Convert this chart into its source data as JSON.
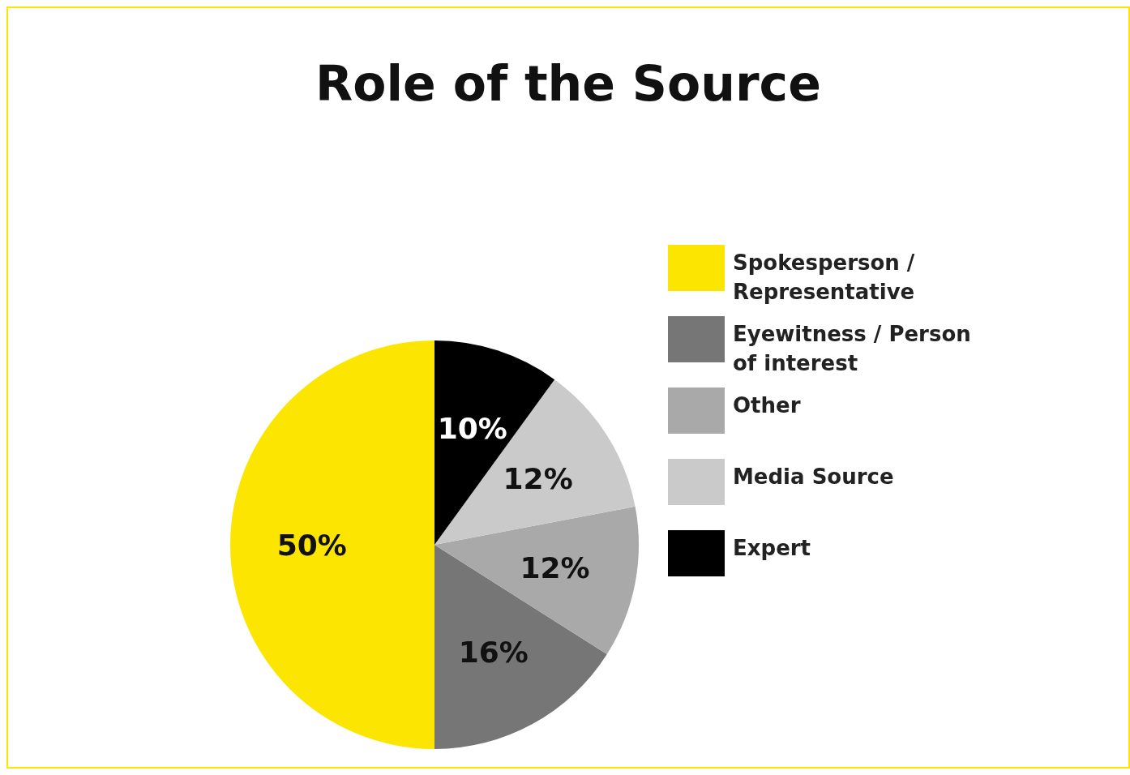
{
  "chart_data": {
    "type": "pie",
    "title": "Role of the Source",
    "categories": [
      "Spokesperson / Representative",
      "Eyewitness / Person of interest",
      "Other",
      "Media Source",
      "Expert"
    ],
    "values": [
      50,
      16,
      12,
      12,
      10
    ],
    "colors": [
      "#fce500",
      "#767676",
      "#a9a9a9",
      "#cacaca",
      "#000000"
    ],
    "value_labels": [
      "50%",
      "16%",
      "12%",
      "12%",
      "10%"
    ],
    "legend": "right"
  }
}
